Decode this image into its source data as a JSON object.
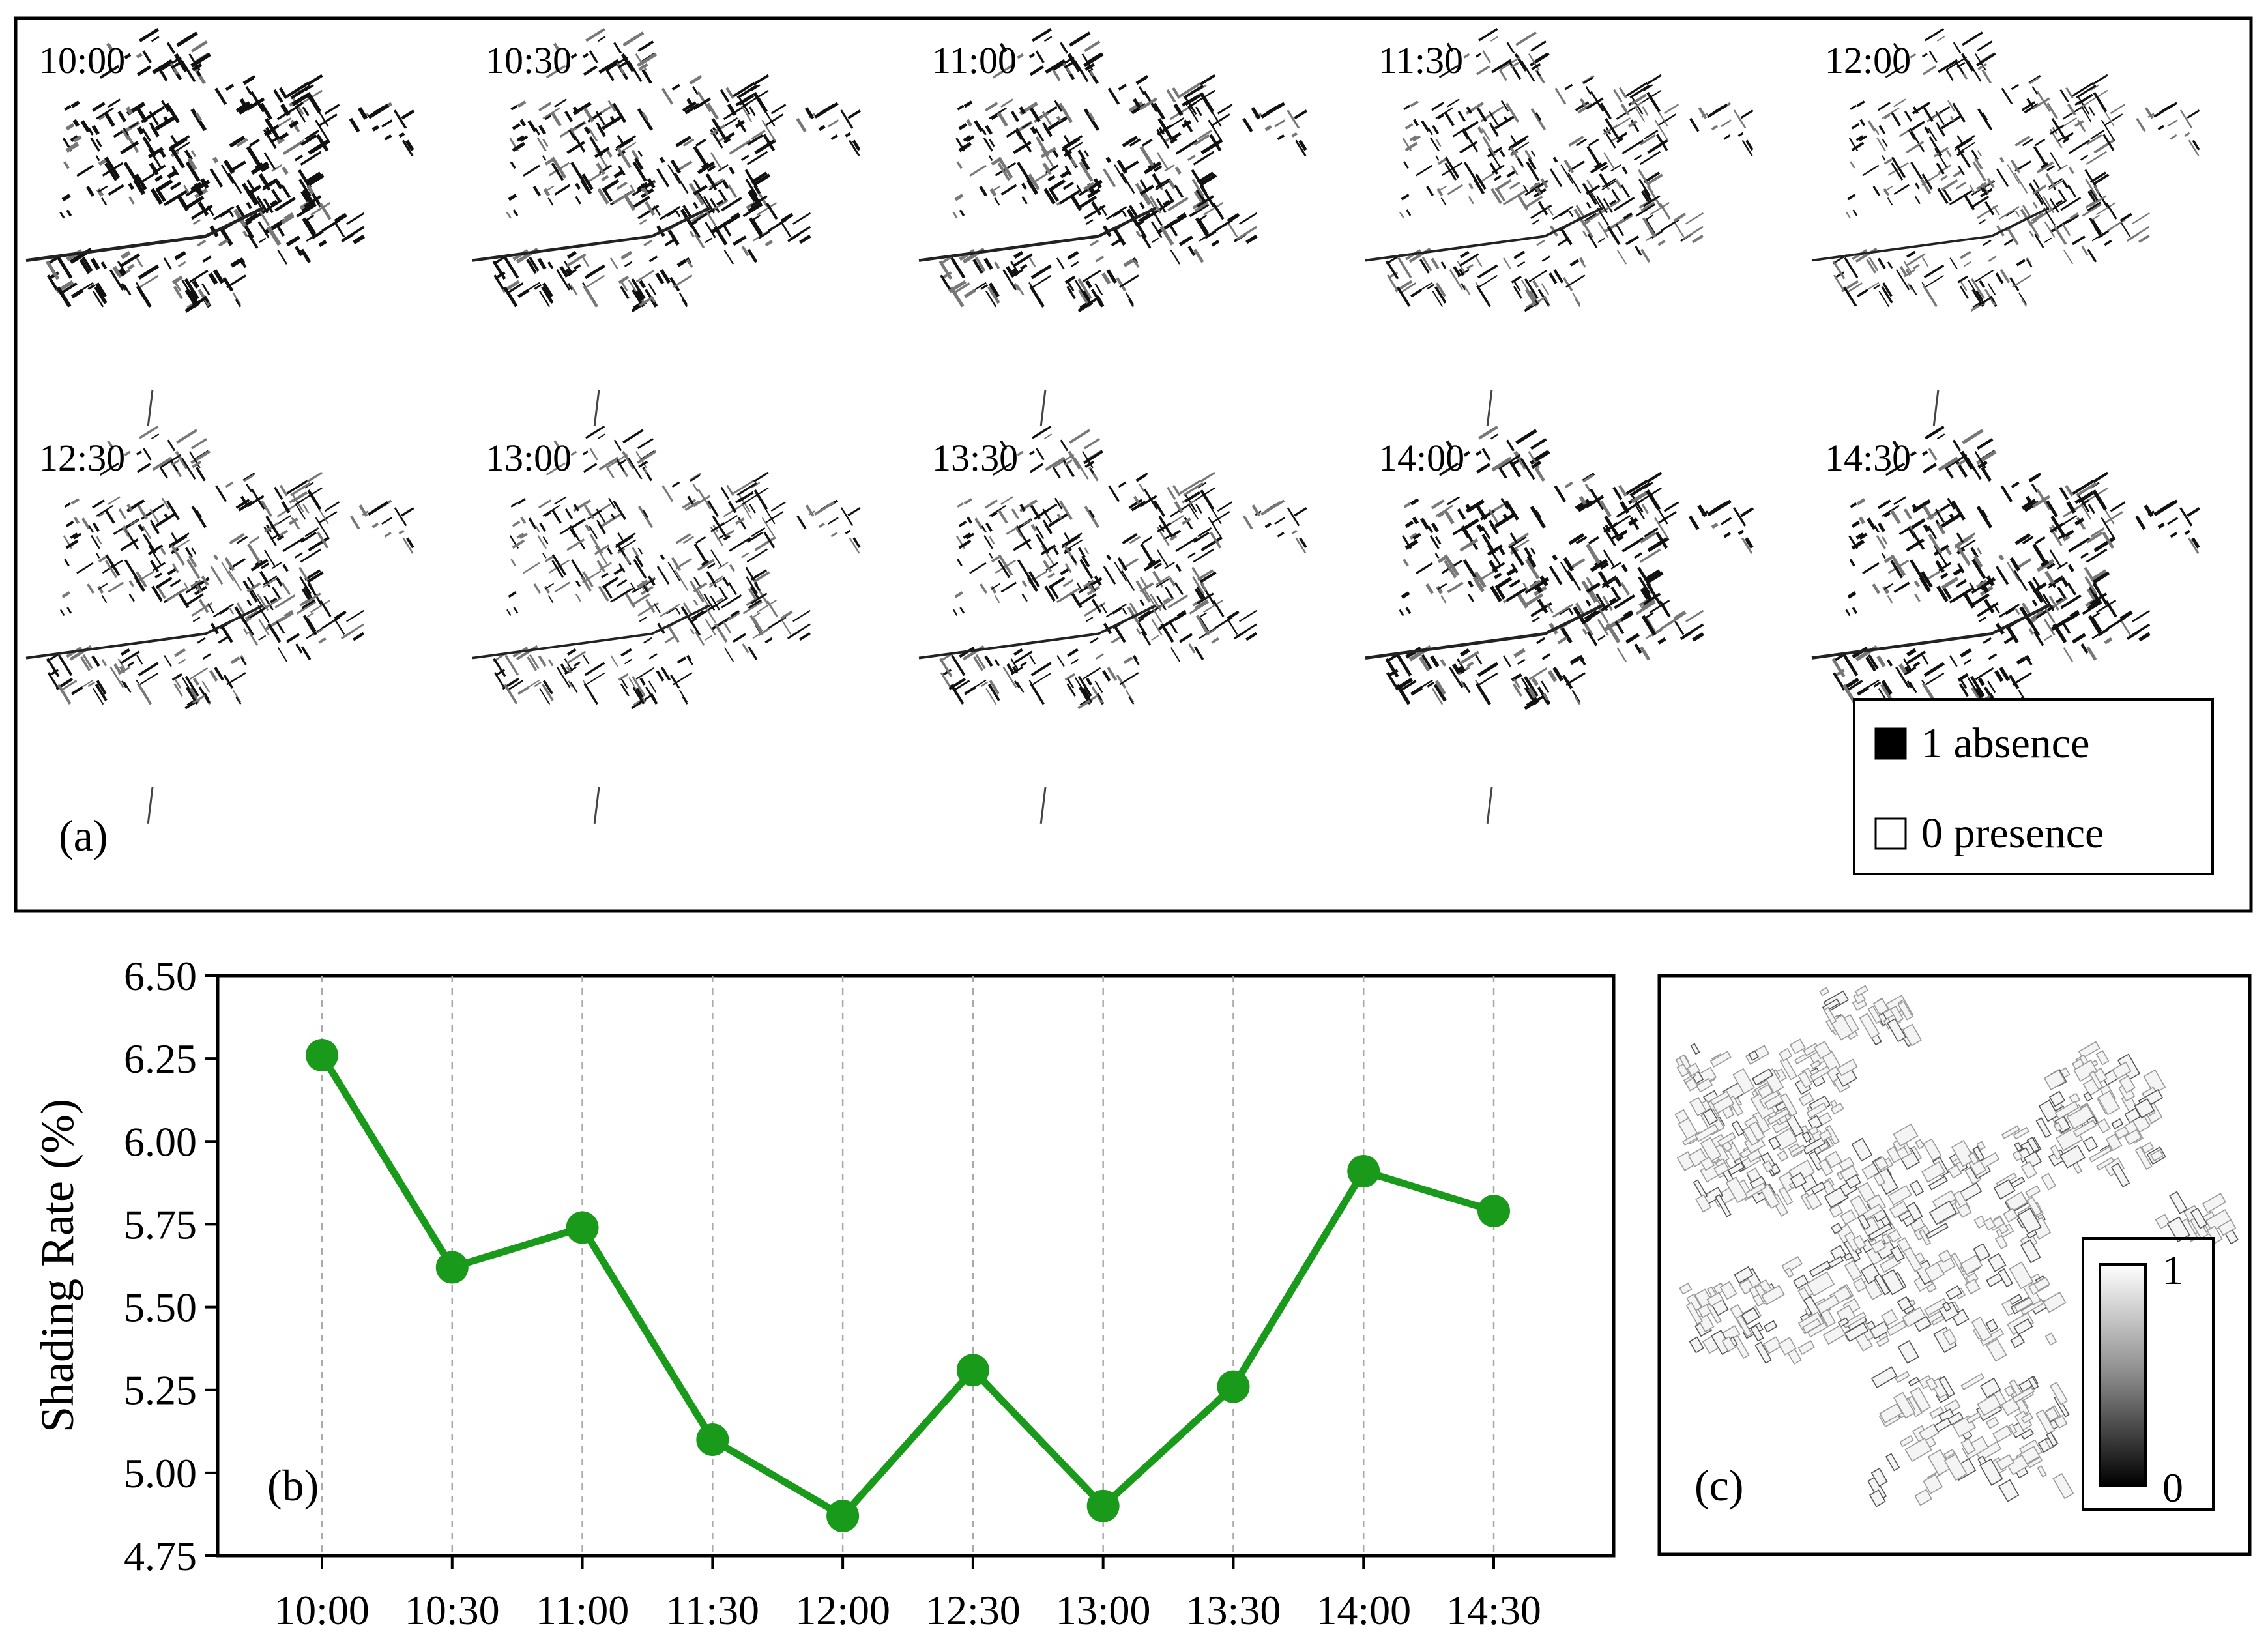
{
  "panel_a": {
    "label": "(a)",
    "maps": [
      {
        "time": "10:00",
        "shade": 1.0
      },
      {
        "time": "10:30",
        "shade": 0.82
      },
      {
        "time": "11:00",
        "shade": 0.85
      },
      {
        "time": "11:30",
        "shade": 0.62
      },
      {
        "time": "12:00",
        "shade": 0.55
      },
      {
        "time": "12:30",
        "shade": 0.66
      },
      {
        "time": "13:00",
        "shade": 0.56
      },
      {
        "time": "13:30",
        "shade": 0.64
      },
      {
        "time": "14:00",
        "shade": 0.92
      },
      {
        "time": "14:30",
        "shade": 0.88
      }
    ],
    "legend": [
      {
        "label": "1 absence",
        "color": "#000000"
      },
      {
        "label": "0 presence",
        "color": "#ffffff"
      }
    ]
  },
  "chart_data": {
    "type": "line",
    "label": "(b)",
    "title": "",
    "xlabel": "",
    "ylabel": "Shading Rate (%)",
    "categories": [
      "10:00",
      "10:30",
      "11:00",
      "11:30",
      "12:00",
      "12:30",
      "13:00",
      "13:30",
      "14:00",
      "14:30"
    ],
    "series": [
      {
        "values": [
          6.26,
          5.62,
          5.74,
          5.1,
          4.87,
          5.31,
          4.9,
          5.26,
          5.91,
          5.79
        ],
        "color": "#1a9a1a"
      }
    ],
    "ylim": [
      4.75,
      6.5
    ],
    "yticks": [
      "4.75",
      "5.00",
      "5.25",
      "5.50",
      "5.75",
      "6.00",
      "6.25",
      "6.50"
    ],
    "grid": "vertical dashed"
  },
  "panel_c": {
    "label": "(c)",
    "colorbar": {
      "max_label": "1",
      "min_label": "0",
      "low_color": "#000000",
      "high_color": "#ffffff"
    }
  }
}
